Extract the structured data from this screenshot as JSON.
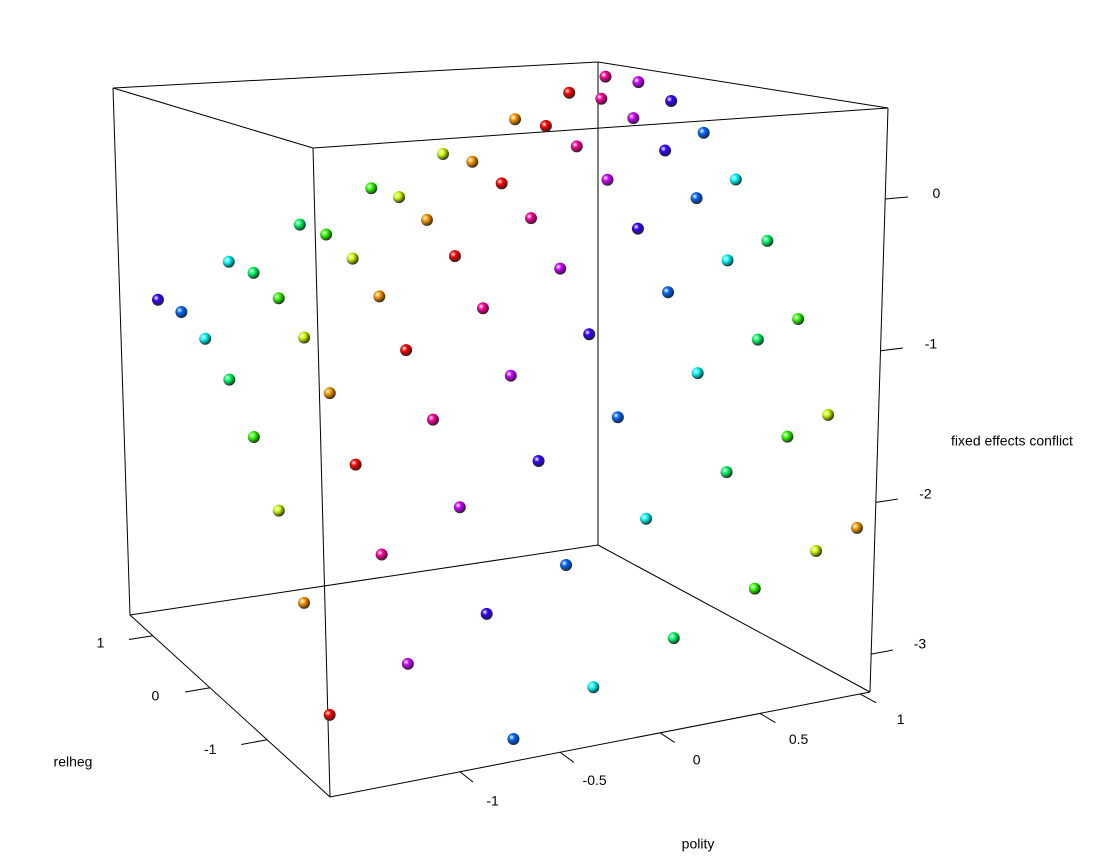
{
  "chart_data": {
    "type": "scatter3d",
    "x_label": "polity",
    "y_label": "relheg",
    "z_label": "fixed effects conflict",
    "xlim": [
      -1.65,
      1.05
    ],
    "ylim": [
      -2.1,
      1.4
    ],
    "zlim": [
      -3.25,
      0.6
    ],
    "xticks": [
      -1,
      -0.5,
      0,
      0.5,
      1
    ],
    "yticks": [
      -1,
      0,
      1
    ],
    "zticks": [
      -3,
      -2,
      -1,
      0
    ],
    "palette": [
      "#ff0000",
      "#ff9900",
      "#ccff00",
      "#33ff00",
      "#00ff66",
      "#00ffff",
      "#0066ff",
      "#3300ff",
      "#cc00ff",
      "#ff0099"
    ],
    "x": [
      -1.5,
      -1.5,
      -1.5,
      -1.5,
      -1.5,
      -1.5,
      -1.5,
      -1.5,
      -1.1,
      -1.1,
      -1.1,
      -1.1,
      -1.1,
      -1.1,
      -1.1,
      -1.1,
      -0.7,
      -0.7,
      -0.7,
      -0.7,
      -0.7,
      -0.7,
      -0.7,
      -0.7,
      -0.7,
      -0.3,
      -0.3,
      -0.3,
      -0.3,
      -0.3,
      -0.3,
      -0.3,
      -0.3,
      -0.3,
      0.1,
      0.1,
      0.1,
      0.1,
      0.1,
      0.1,
      0.1,
      0.1,
      0.1,
      0.5,
      0.5,
      0.5,
      0.5,
      0.5,
      0.5,
      0.5,
      0.5,
      0.5,
      0.8,
      0.8,
      0.8,
      0.8,
      0.8,
      0.8,
      0.8,
      0.8,
      0.8,
      1.0,
      1.0,
      1.0,
      1.0,
      1.0,
      1.0,
      1.0,
      1.0,
      1.0
    ],
    "y": [
      -1.6,
      -1.2,
      -0.8,
      -0.4,
      0,
      0.4,
      0.8,
      1.2,
      -1.6,
      -1.2,
      -0.8,
      -0.4,
      0,
      0.4,
      0.8,
      1.2,
      -2,
      -1.6,
      -1.2,
      -0.8,
      -0.4,
      0,
      0.4,
      0.8,
      1.2,
      -2,
      -1.6,
      -1.2,
      -0.8,
      -0.4,
      0,
      0.4,
      0.8,
      1.2,
      -2,
      -1.6,
      -1.2,
      -0.8,
      -0.4,
      0,
      0.4,
      0.8,
      1.2,
      -2,
      -1.6,
      -1.2,
      -0.8,
      -0.4,
      0,
      0.4,
      0.8,
      1.2,
      -2,
      -1.6,
      -1.2,
      -0.8,
      -0.4,
      0,
      0.4,
      0.8,
      1.2,
      -2,
      -1.6,
      -1.2,
      -0.8,
      -0.4,
      0,
      0.4,
      0.8,
      1.2
    ],
    "z": [
      -2.94,
      -2.36,
      -1.88,
      -1.5,
      -1.21,
      -1.02,
      -0.92,
      -0.92,
      -2.71,
      -2.13,
      -1.65,
      -1.27,
      -0.98,
      -0.79,
      -0.69,
      -0.69,
      -3.15,
      -2.48,
      -1.9,
      -1.42,
      -1.04,
      -0.75,
      -0.56,
      -0.46,
      -0.46,
      -2.92,
      -2.25,
      -1.67,
      -1.19,
      -0.81,
      -0.52,
      -0.33,
      -0.23,
      -0.23,
      -2.7,
      -2.03,
      -1.45,
      -0.97,
      -0.59,
      -0.3,
      -0.11,
      -0.01,
      -0.01,
      -2.47,
      -1.8,
      -1.22,
      -0.74,
      -0.36,
      -0.07,
      0.12,
      0.22,
      0.22,
      -2.29,
      -1.62,
      -1.04,
      -0.56,
      -0.18,
      0.11,
      0.3,
      0.4,
      0.4,
      -2.18,
      -1.51,
      -0.93,
      -0.45,
      -0.07,
      0.22,
      0.41,
      0.51,
      0.51
    ]
  }
}
